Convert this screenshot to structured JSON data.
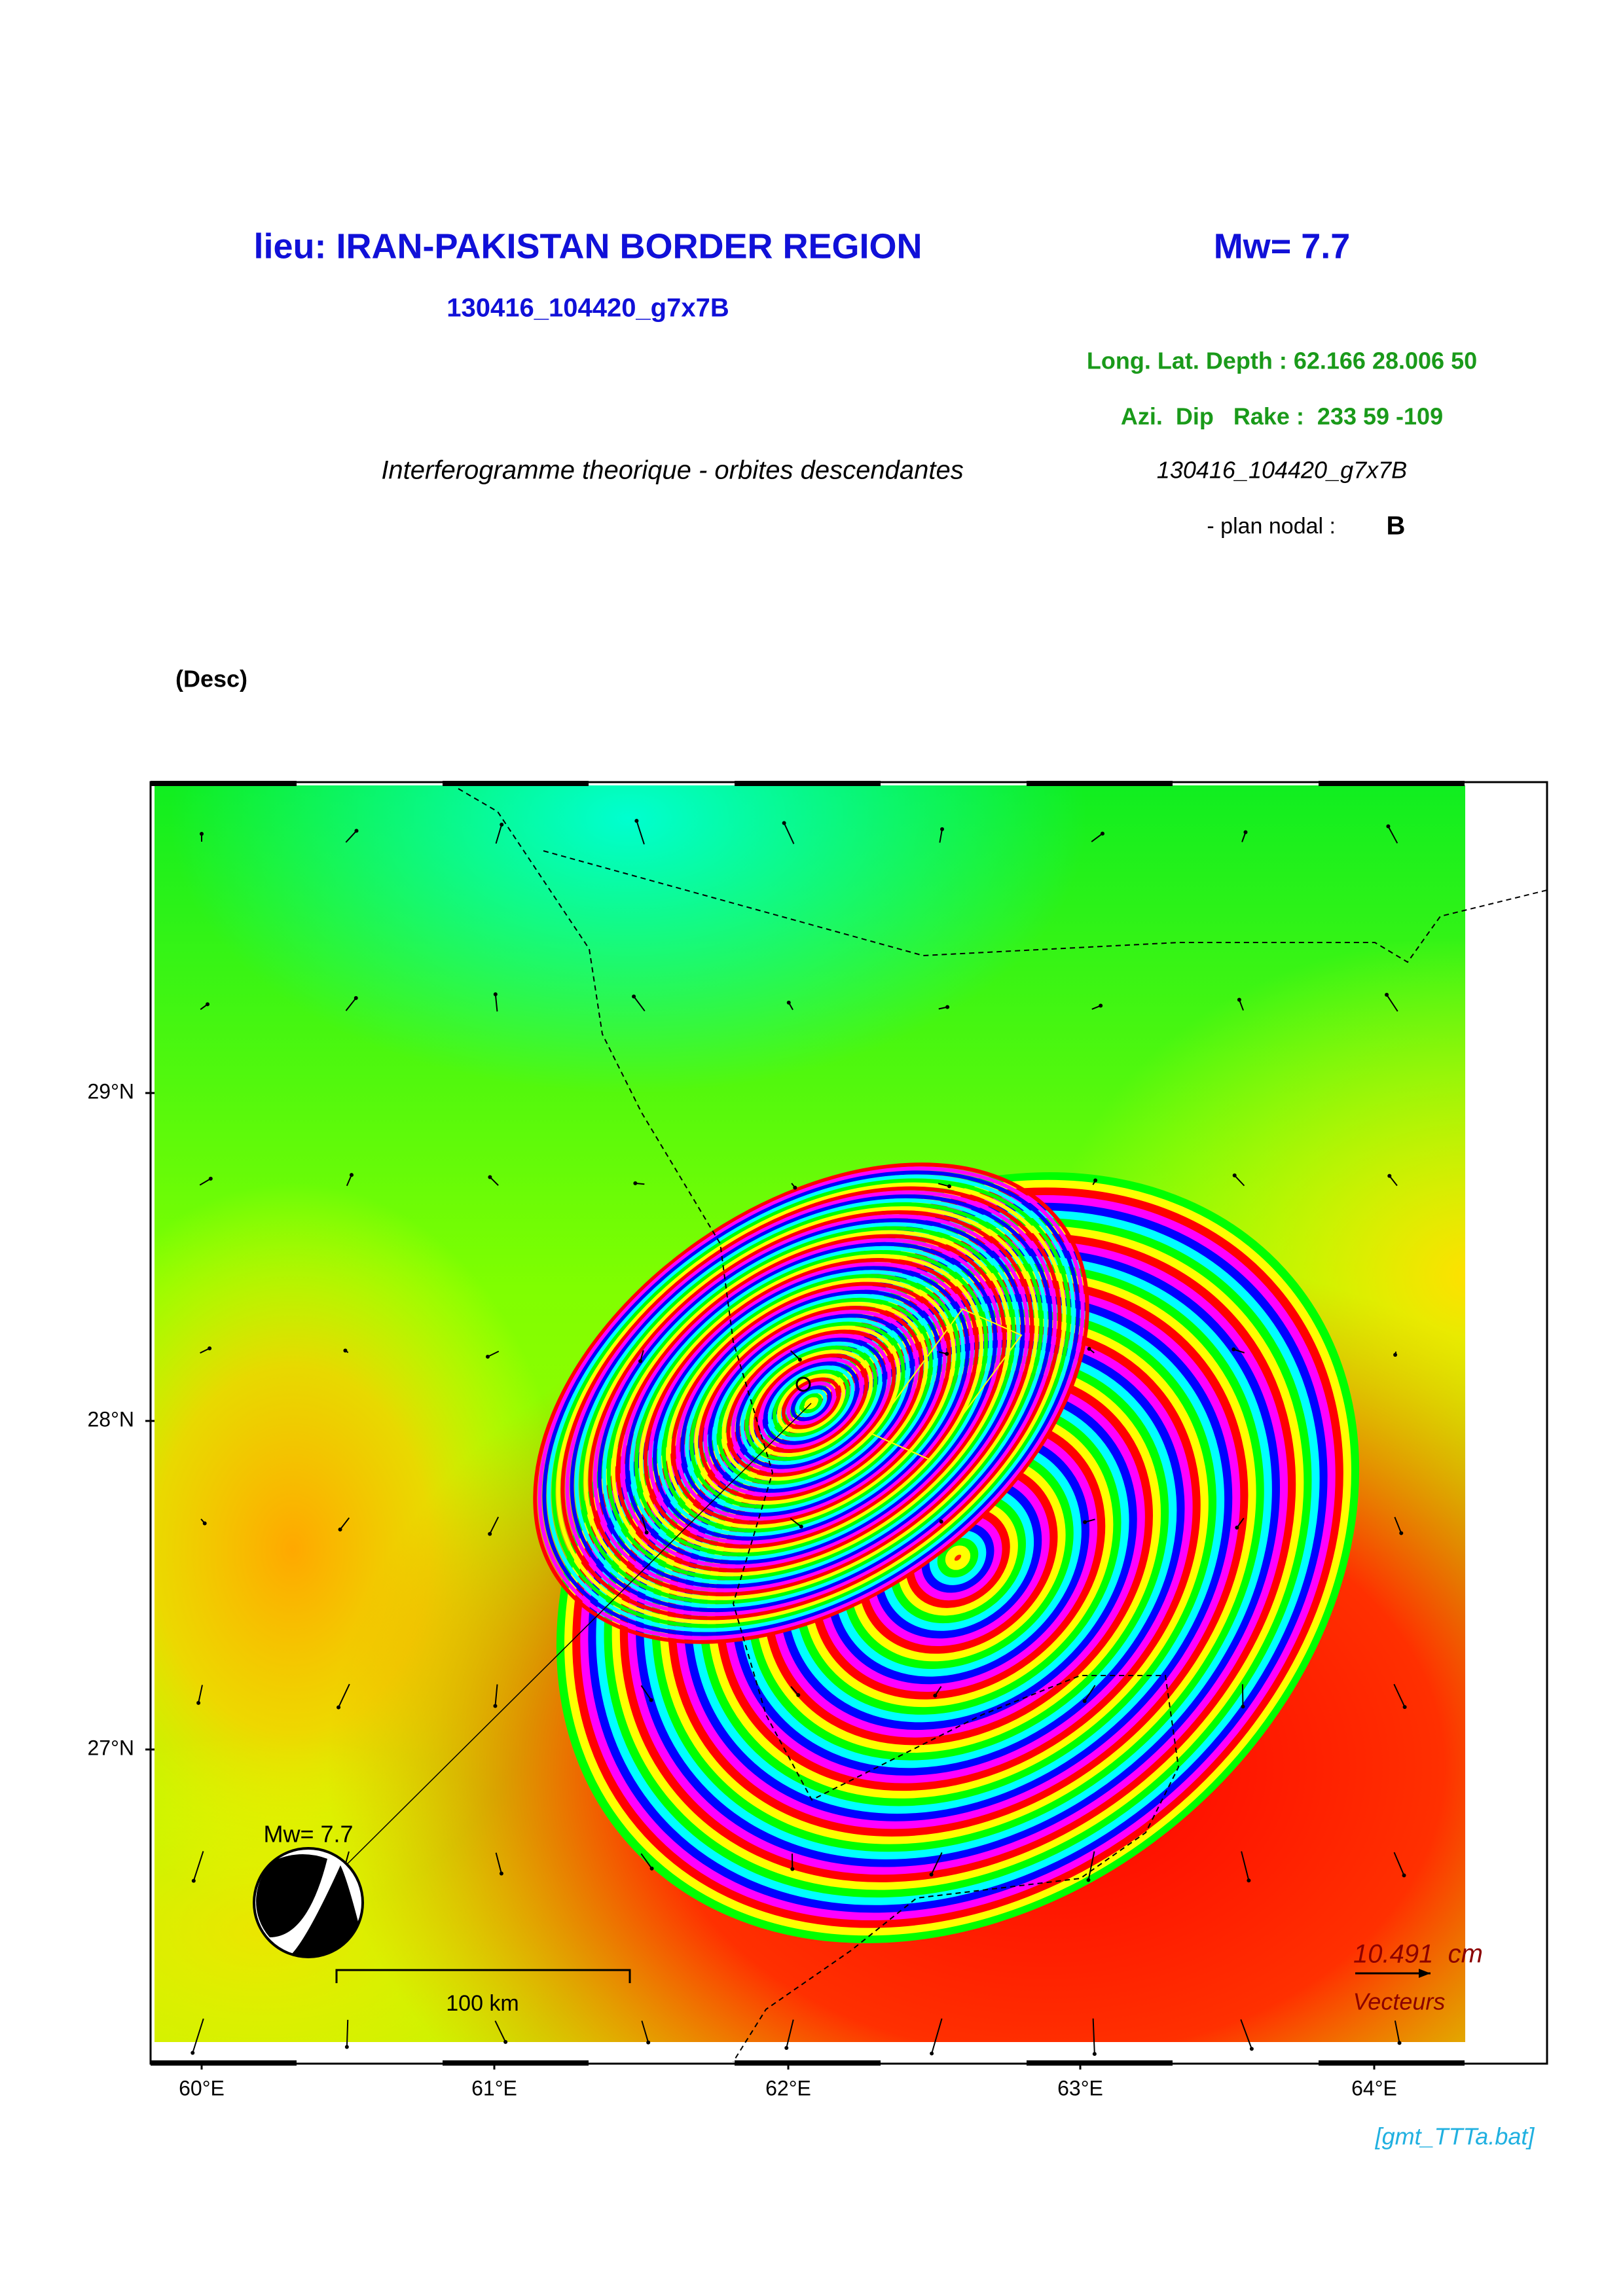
{
  "header": {
    "title": "lieu: IRAN-PAKISTAN BORDER REGION",
    "magnitude": "Mw= 7.7",
    "event_id": "130416_104420_g7x7B",
    "location": "Long. Lat. Depth : 62.166 28.006 50",
    "mechanism": "Azi.  Dip   Rake :  233 59 -109",
    "subtitle": "Interferogramme theorique - orbites descendantes",
    "event_id_italic": "130416_104420_g7x7B",
    "nodal_plane_label": "- plan nodal :",
    "nodal_plane": "B"
  },
  "map": {
    "orbit": "(Desc)",
    "lat_labels": [
      "29°N",
      "28°N",
      "27°N"
    ],
    "lon_labels": [
      "60°E",
      "61°E",
      "62°E",
      "63°E",
      "64°E"
    ],
    "beachball_label": "Mw= 7.7",
    "scale_bar": "100 km",
    "vector_scale": "10.491  cm",
    "vector_label": "Vecteurs"
  },
  "footer": "[gmt_TTTa.bat]"
}
